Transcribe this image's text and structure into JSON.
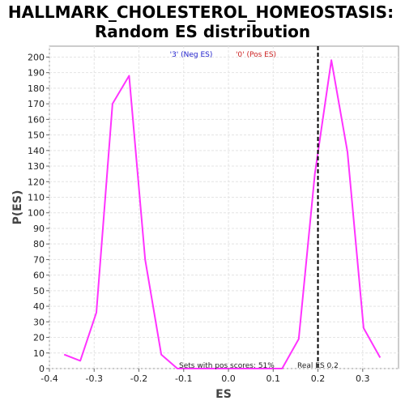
{
  "chart_data": {
    "type": "line",
    "title_line1": "HALLMARK_CHOLESTEROL_HOMEOSTASIS:",
    "title_line2": "Random ES distribution",
    "xlabel": "ES",
    "ylabel": "P(ES)",
    "xlim": [
      -0.4,
      0.38
    ],
    "ylim": [
      0,
      207
    ],
    "x_ticks": [
      -0.4,
      -0.3,
      -0.2,
      -0.1,
      0.0,
      0.1,
      0.2,
      0.3
    ],
    "x_tick_labels": [
      "-0.4",
      "-0.3",
      "-0.2",
      "-0.1",
      "0.0",
      "0.1",
      "0.2",
      "0.3"
    ],
    "y_ticks": [
      0,
      10,
      20,
      30,
      40,
      50,
      60,
      70,
      80,
      90,
      100,
      110,
      120,
      130,
      140,
      150,
      160,
      170,
      180,
      190,
      200
    ],
    "grid": true,
    "line_color": "#ff33ff",
    "series": [
      {
        "points": [
          [
            -0.367,
            9
          ],
          [
            -0.331,
            5
          ],
          [
            -0.295,
            36
          ],
          [
            -0.259,
            170
          ],
          [
            -0.222,
            188
          ],
          [
            -0.186,
            70
          ],
          [
            -0.15,
            9
          ],
          [
            -0.114,
            0
          ],
          [
            0.12,
            0
          ],
          [
            0.157,
            19
          ],
          [
            0.193,
            125
          ],
          [
            0.23,
            198
          ],
          [
            0.266,
            139
          ],
          [
            0.302,
            26
          ],
          [
            0.339,
            7
          ]
        ]
      }
    ],
    "real_es": 0.2,
    "real_es_label": "Real ES 0.2",
    "legend_neg": "'3' (Neg ES)",
    "legend_pos": "'0' (Pos ES)",
    "legend_neg_color": "#2222cc",
    "legend_pos_color": "#cc2222",
    "annotation": "Sets with pos scores: 51%"
  }
}
